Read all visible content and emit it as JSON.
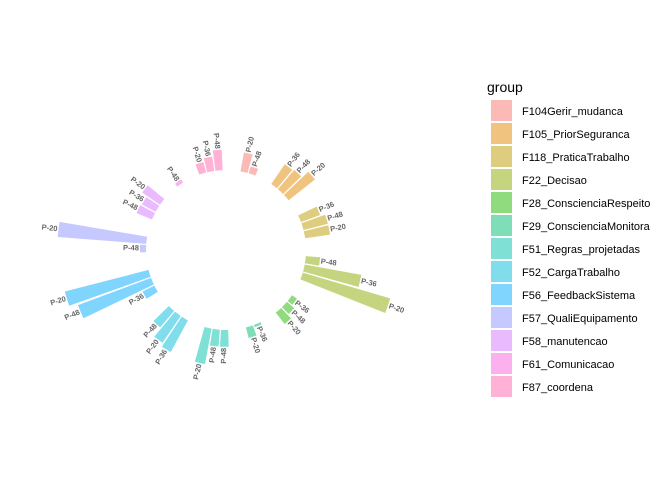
{
  "chart_data": {
    "type": "bar",
    "subtype": "circular-barplot",
    "legend": {
      "title": "group",
      "position": "right"
    },
    "groups": [
      {
        "name": "F104Gerir_mudanca",
        "color": "#F8766D",
        "bars": [
          {
            "label": "P-20",
            "value": 16
          },
          {
            "label": "P-48",
            "value": 6
          }
        ]
      },
      {
        "name": "F105_PriorSeguranca",
        "color": "#E18A00",
        "bars": [
          {
            "label": "P-36",
            "value": 20
          },
          {
            "label": "P-48",
            "value": 21
          },
          {
            "label": "P-20",
            "value": 28
          }
        ]
      },
      {
        "name": "F118_PraticaTrabalho",
        "color": "#BE9C00",
        "bars": [
          {
            "label": "P-36",
            "value": 17
          },
          {
            "label": "P-48",
            "value": 21
          },
          {
            "label": "P-20",
            "value": 21
          }
        ]
      },
      {
        "name": "F22_Decisao",
        "color": "#8CAB00",
        "bars": [
          {
            "label": "P-48",
            "value": 12
          },
          {
            "label": "P-36",
            "value": 48
          },
          {
            "label": "P-20",
            "value": 76
          }
        ]
      },
      {
        "name": "F28_ConscienciaRespeito",
        "color": "#24B700",
        "bars": [
          {
            "label": "P-36",
            "value": 5
          },
          {
            "label": "P-48",
            "value": 8
          },
          {
            "label": "P-20",
            "value": 12
          }
        ]
      },
      {
        "name": "F29_ConscienciaMonitora",
        "color": "#00BE70",
        "bars": [
          {
            "label": "P-36",
            "value": 2
          },
          {
            "label": "P-20",
            "value": 9
          }
        ]
      },
      {
        "name": "F51_Regras_projetadas",
        "color": "#00C1AB",
        "bars": [
          {
            "label": "P-48",
            "value": 14
          },
          {
            "label": "P-48",
            "value": 14
          },
          {
            "label": "P-20",
            "value": 30
          }
        ]
      },
      {
        "name": "F52_CargaTrabalho",
        "color": "#00BBDA",
        "bars": [
          {
            "label": "P-36",
            "value": 30
          },
          {
            "label": "P-20",
            "value": 27
          },
          {
            "label": "P-48",
            "value": 18
          }
        ]
      },
      {
        "name": "F56_FeedbackSistema",
        "color": "#00ACFC",
        "bars": [
          {
            "label": "P-36",
            "value": 11
          },
          {
            "label": "P-48",
            "value": 65
          },
          {
            "label": "P-20",
            "value": 72
          }
        ]
      },
      {
        "name": "F57_QualiEquipamento",
        "color": "#8B93FF",
        "bars": [
          {
            "label": "P-48",
            "value": 5
          },
          {
            "label": "P-20",
            "value": 74
          }
        ]
      },
      {
        "name": "F58_manutencao",
        "color": "#D575FE",
        "bars": [
          {
            "label": "P-48",
            "value": 14
          },
          {
            "label": "P-36",
            "value": 13
          },
          {
            "label": "P-20",
            "value": 18
          }
        ]
      },
      {
        "name": "F61_Comunicacao",
        "color": "#F962DD",
        "bars": [
          {
            "label": "P-48",
            "value": 3
          }
        ]
      },
      {
        "name": "F87_coordena",
        "color": "#FF65AC",
        "bars": [
          {
            "label": "P-20",
            "value": 9
          },
          {
            "label": "P-36",
            "value": 12
          },
          {
            "label": "P-48",
            "value": 17
          }
        ]
      }
    ]
  }
}
